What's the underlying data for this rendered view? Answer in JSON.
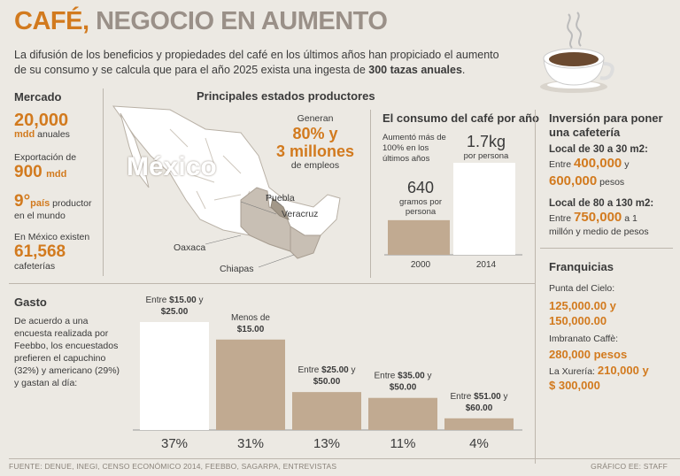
{
  "header": {
    "title_accent": "CAFÉ,",
    "title_rest": "NEGOCIO EN AUMENTO",
    "intro_part1": "La difusión de los beneficios y propiedades del café en los últimos años han propiciado el aumento de su consumo y se calcula que para el año 2025 exista una ingesta de ",
    "intro_bold": "300 tazas anuales",
    "intro_end": "."
  },
  "mercado": {
    "heading": "Mercado",
    "value1": "20,000",
    "value1_unit": "mdd",
    "value1_suffix": "anuales",
    "export_label": "Exportación de",
    "export_value": "900",
    "export_unit": "mdd",
    "rank_value": "9°",
    "rank_unit": "país",
    "rank_suffix": "productor",
    "rank_line2": "en el mundo",
    "count_label": "En México existen",
    "count_value": "61,568",
    "count_suffix": "cafeterías"
  },
  "estados": {
    "heading": "Principales estados productores",
    "country": "México",
    "generan": "Generan",
    "percent": "80% y",
    "millones": "3 millones",
    "empleos": "de empleos",
    "labels": [
      "Puebla",
      "Veracruz",
      "Oaxaca",
      "Chiapas"
    ]
  },
  "consumo": {
    "heading": "El consumo del café por año",
    "note": "Aumentó más de 100% en los últimos años",
    "bar2000_value": "640",
    "bar2000_unit": "gramos por persona",
    "bar2014_value": "1.7kg",
    "bar2014_unit": "por persona",
    "year1": "2000",
    "year2": "2014"
  },
  "inversion": {
    "heading": "Inversión para poner una cafetería",
    "local1_title": "Local de 30 a 30 m2:",
    "local1_entre": "Entre",
    "local1_v1": "400,000",
    "local1_y": "y",
    "local1_v2": "600,000",
    "local1_unit": "pesos",
    "local2_title": "Local de 80 a 130 m2:",
    "local2_entre": "Entre",
    "local2_v1": "750,000",
    "local2_rest": "a 1",
    "local2_line2": "millón y medio de pesos"
  },
  "franquicias": {
    "heading": "Franquicias",
    "f1_name": "Punta del Cielo:",
    "f1_value": "125,000.00 y",
    "f1_value2": "150,000.00",
    "f2_name": "Imbranato Caffè:",
    "f2_value": "280,000 pesos",
    "f3_name": "La Xurería:",
    "f3_value": "210,000 y",
    "f3_value2": "$ 300,000"
  },
  "gasto": {
    "heading": "Gasto",
    "text": "De acuerdo a una encuesta realizada por Feebbo, los encuestados prefieren el capuchino (32%) y americano (29%) y gastan al día:"
  },
  "footer": {
    "source": "FUENTE: DENUE, INEGI, CENSO ECONÓMICO 2014, FEEBBO, SAGARPA, ENTREVISTAS",
    "credit": "GRÁFICO EE: STAFF"
  },
  "colors": {
    "accent": "#d27a1e",
    "bar_tan": "#c1aa91",
    "bar_white": "#ffffff",
    "map_highlight": "#c8bfb4"
  },
  "chart_data": [
    {
      "type": "bar",
      "categories": [
        "Entre $15.00 y $25.00",
        "Menos de $15.00",
        "Entre $25.00 y $50.00",
        "Entre $35.00 y $50.00",
        "Entre $51.00 y $60.00"
      ],
      "category_parts": [
        {
          "pre": "Entre ",
          "b1": "$15.00",
          "mid": " y",
          "b2": "$25.00",
          "post": ""
        },
        {
          "pre": "Menos de",
          "b1": "",
          "mid": "",
          "b2": "$15.00",
          "post": ""
        },
        {
          "pre": "Entre ",
          "b1": "$25.00",
          "mid": " y",
          "b2": "$50.00",
          "post": ""
        },
        {
          "pre": "Entre ",
          "b1": "$35.00",
          "mid": " y",
          "b2": "$50.00",
          "post": ""
        },
        {
          "pre": "Entre ",
          "b1": "$51.00",
          "mid": " y",
          "b2": "$60.00",
          "post": ""
        }
      ],
      "values": [
        37,
        31,
        13,
        11,
        4
      ],
      "value_labels": [
        "37%",
        "31%",
        "13%",
        "11%",
        "4%"
      ],
      "highlight_index": 0,
      "ylim": [
        0,
        40
      ]
    },
    {
      "type": "bar",
      "categories": [
        "2000",
        "2014"
      ],
      "values": [
        0.64,
        1.7
      ],
      "value_labels": [
        "640",
        "1.7kg"
      ],
      "ylabel": "",
      "ylim": [
        0,
        1.8
      ]
    }
  ]
}
